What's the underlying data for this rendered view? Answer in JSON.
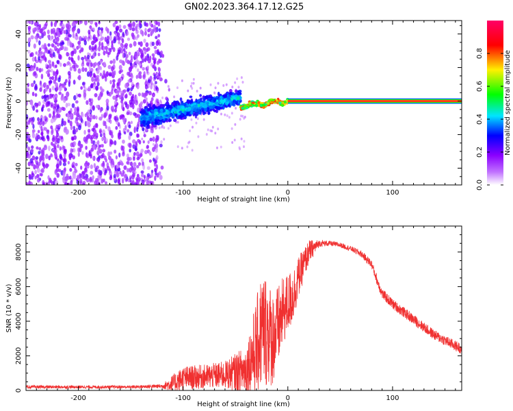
{
  "title": "GN02.2023.364.17.12.G25",
  "chart_data": [
    {
      "type": "heatmap",
      "xlabel": "Height of straight line (km)",
      "ylabel": "Frequency (Hz)",
      "xlim": [
        -250,
        166
      ],
      "ylim": [
        -50,
        48
      ],
      "x_ticks": [
        -200,
        -100,
        0,
        100
      ],
      "y_ticks": [
        -40,
        -20,
        0,
        20,
        40
      ],
      "colorbar": {
        "label": "Normalized spectral amplitude",
        "range": [
          0,
          1
        ],
        "ticks": [
          0.0,
          0.2,
          0.4,
          0.6,
          0.8
        ],
        "colormap": [
          "#ffffff",
          "#8a00ff",
          "#0000ff",
          "#00e5ff",
          "#00ff00",
          "#fff000",
          "#ff0000",
          "#ff0066"
        ]
      },
      "features": [
        {
          "x_range": [
            -250,
            -125
          ],
          "freq_range": [
            -50,
            48
          ],
          "amplitude": "low (0.1-0.3), broadband noise"
        },
        {
          "x_range": [
            -140,
            -45
          ],
          "freq_center": [
            -10,
            2
          ],
          "freq_half_width": 9,
          "amplitude": "0.3-0.5"
        },
        {
          "x_range": [
            -45,
            0
          ],
          "freq_center": [
            -4,
            0
          ],
          "freq_half_width": 3,
          "amplitude": "0.5-0.9"
        },
        {
          "x_range": [
            0,
            166
          ],
          "freq_center": [
            0,
            0
          ],
          "freq_half_width": 1.5,
          "amplitude": "~0.9-1.0 steady tone"
        }
      ]
    },
    {
      "type": "line",
      "xlabel": "Height of straight line (km)",
      "ylabel": "SNR (10 * v/v)",
      "xlim": [
        -250,
        166
      ],
      "ylim": [
        0,
        9500
      ],
      "x_ticks": [
        -200,
        -100,
        0,
        100
      ],
      "y_ticks": [
        0,
        2000,
        4000,
        6000,
        8000
      ],
      "series_color": "#f03030",
      "envelope": {
        "x": [
          -250,
          -200,
          -150,
          -120,
          -110,
          -100,
          -80,
          -60,
          -40,
          -30,
          -25,
          -20,
          -15,
          -10,
          -5,
          0,
          5,
          10,
          20,
          30,
          40,
          50,
          60,
          70,
          80,
          85,
          90,
          100,
          120,
          140,
          166
        ],
        "mean": [
          200,
          200,
          200,
          250,
          400,
          700,
          800,
          900,
          1200,
          2500,
          3500,
          3500,
          3000,
          3500,
          4500,
          5000,
          5500,
          6500,
          8000,
          8500,
          8500,
          8400,
          8200,
          7900,
          7300,
          6400,
          5600,
          5000,
          4100,
          3200,
          2400
        ],
        "noise": [
          90,
          90,
          90,
          120,
          500,
          700,
          700,
          800,
          1400,
          2800,
          3500,
          3300,
          2800,
          2500,
          2000,
          1800,
          1600,
          1200,
          700,
          200,
          150,
          150,
          150,
          200,
          250,
          300,
          300,
          300,
          300,
          300,
          300
        ]
      }
    }
  ]
}
